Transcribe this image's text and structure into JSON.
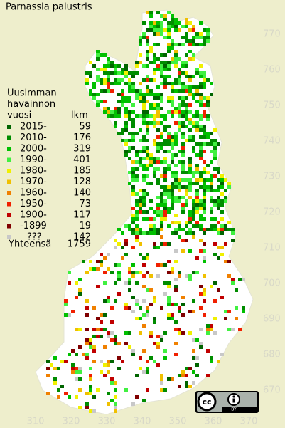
{
  "title": "Parnassia palustris",
  "legend": {
    "heading": [
      "Uusimman",
      "havainnon",
      "vuosi"
    ],
    "count_heading": "lkm",
    "entries": [
      {
        "label": "2015-",
        "count": 59,
        "color": "#006400"
      },
      {
        "label": "2010-",
        "count": 176,
        "color": "#008c00"
      },
      {
        "label": "2000-",
        "count": 319,
        "color": "#00c000"
      },
      {
        "label": "1990-",
        "count": 401,
        "color": "#40f040"
      },
      {
        "label": "1980-",
        "count": 185,
        "color": "#f0f000"
      },
      {
        "label": "1970-",
        "count": 128,
        "color": "#f0c000"
      },
      {
        "label": "1960-",
        "count": 140,
        "color": "#f08000"
      },
      {
        "label": "1950-",
        "count": 73,
        "color": "#f02000"
      },
      {
        "label": "1900-",
        "count": 117,
        "color": "#c00000"
      },
      {
        "label": "-1899",
        "count": 19,
        "color": "#800000"
      },
      {
        "label": "???",
        "count": 142,
        "color": "#c8c8c8"
      }
    ],
    "total_label": "Yhteensä",
    "total": 1759
  },
  "grid": {
    "y_ticks": [
      770,
      760,
      750,
      740,
      730,
      720,
      710,
      700,
      690,
      680,
      670
    ],
    "x_ticks": [
      310,
      320,
      330,
      340,
      350,
      360,
      370
    ]
  },
  "license": {
    "symbol": "cc",
    "label": "BY"
  }
}
